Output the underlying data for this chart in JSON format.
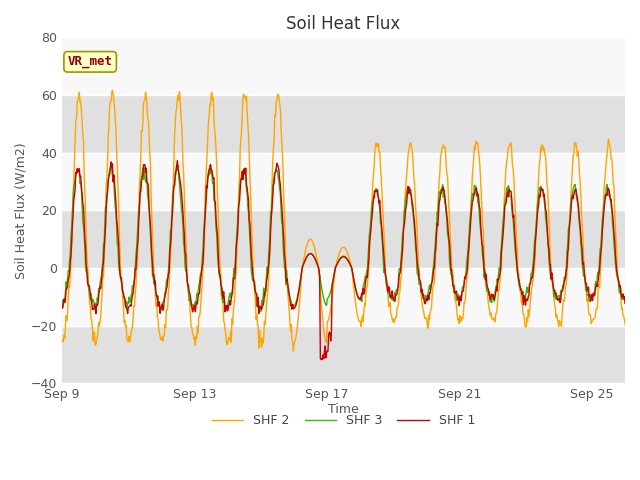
{
  "title": "Soil Heat Flux",
  "xlabel": "Time",
  "ylabel": "Soil Heat Flux (W/m2)",
  "ylim": [
    -40,
    80
  ],
  "yticks": [
    -40,
    -20,
    0,
    20,
    40,
    60,
    80
  ],
  "xtick_labels": [
    "Sep 9",
    "Sep 13",
    "Sep 17",
    "Sep 21",
    "Sep 25"
  ],
  "xtick_positions": [
    0,
    4,
    8,
    12,
    16
  ],
  "shf1_color": "#cc0000",
  "shf2_color": "#ffa500",
  "shf3_color": "#33bb00",
  "legend_labels": [
    "SHF 1",
    "SHF 2",
    "SHF 3"
  ],
  "annotation_text": "VR_met",
  "annotation_color": "#990000",
  "annotation_bg": "#ffffcc",
  "annotation_border": "#999900",
  "band_gray": "#e0e0e0",
  "band_white": "#f8f8f8",
  "title_fontsize": 12,
  "label_fontsize": 9,
  "tick_fontsize": 9,
  "line_width": 1.0,
  "figsize": [
    6.4,
    4.8
  ],
  "dpi": 100,
  "n_days": 17,
  "n_per_day": 48
}
